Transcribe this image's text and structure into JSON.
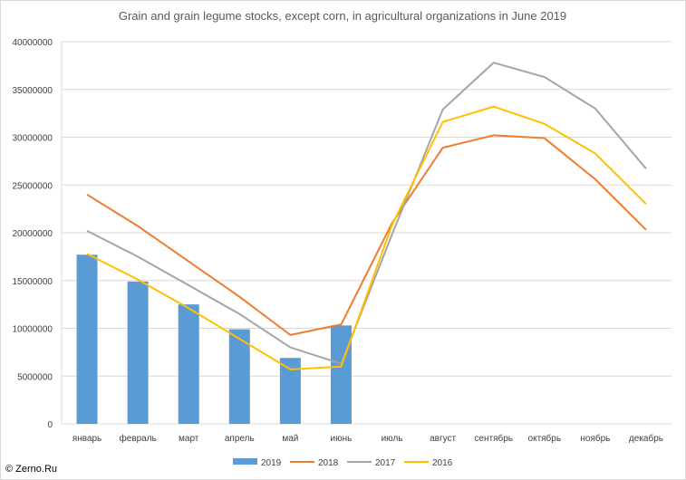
{
  "chart_data": {
    "type": "bar+line",
    "title": "Grain and grain legume stocks, except corn, in agricultural organizations in June 2019",
    "xlabel": "",
    "ylabel": "",
    "ylim": [
      0,
      40000000
    ],
    "yticks": [
      "0",
      "5000000",
      "10000000",
      "15000000",
      "20000000",
      "25000000",
      "30000000",
      "35000000",
      "40000000"
    ],
    "grid": true,
    "legend_position": "bottom",
    "categories": [
      "январь",
      "февраль",
      "март",
      "апрель",
      "май",
      "июнь",
      "июль",
      "август",
      "сентябрь",
      "октябрь",
      "ноябрь",
      "декабрь"
    ],
    "series": [
      {
        "name": "2019",
        "kind": "bar",
        "color": "#5b9bd5",
        "values": [
          17700000,
          14900000,
          12500000,
          9900000,
          6900000,
          10300000,
          null,
          null,
          null,
          null,
          null,
          null
        ]
      },
      {
        "name": "2018",
        "kind": "line",
        "color": "#ed7d31",
        "values": [
          24000000,
          20700000,
          17000000,
          13300000,
          9300000,
          10400000,
          21000000,
          28900000,
          30200000,
          29900000,
          25600000,
          20300000
        ]
      },
      {
        "name": "2017",
        "kind": "line",
        "color": "#a5a5a5",
        "values": [
          20200000,
          17500000,
          14500000,
          11500000,
          8000000,
          6300000,
          19800000,
          32900000,
          37800000,
          36300000,
          33000000,
          26700000
        ]
      },
      {
        "name": "2016",
        "kind": "line",
        "color": "#ffc000",
        "values": [
          17800000,
          15100000,
          12100000,
          8900000,
          5700000,
          6000000,
          20800000,
          31600000,
          33200000,
          31400000,
          28300000,
          23000000
        ]
      }
    ]
  },
  "credit": "© Zerno.Ru"
}
